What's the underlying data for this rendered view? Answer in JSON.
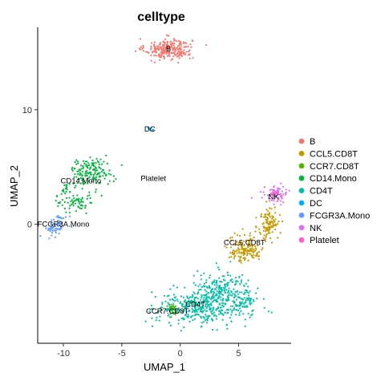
{
  "chart_data": {
    "type": "scatter",
    "title": "celltype",
    "xlabel": "UMAP_1",
    "ylabel": "UMAP_2",
    "xlim": [
      -12.2,
      9.5
    ],
    "ylim": [
      -10.4,
      17.2
    ],
    "xticks": [
      -10,
      -5,
      0,
      5
    ],
    "yticks": [
      0,
      10
    ],
    "grid": false,
    "legend_position": "right",
    "series": [
      {
        "name": "B",
        "color": "#F8766D",
        "clusters": [
          {
            "cx": -1.0,
            "cy": 15.3,
            "sx": 1.0,
            "sy": 0.45,
            "n": 260
          }
        ]
      },
      {
        "name": "CCL5.CD8T",
        "color": "#C49A00",
        "clusters": [
          {
            "cx": 7.6,
            "cy": 0.0,
            "sx": 0.45,
            "sy": 0.75,
            "n": 110
          },
          {
            "cx": 6.0,
            "cy": -2.1,
            "sx": 0.6,
            "sy": 0.6,
            "n": 90
          },
          {
            "cx": 5.0,
            "cy": -2.3,
            "sx": 0.5,
            "sy": 0.5,
            "n": 60
          }
        ]
      },
      {
        "name": "CCR7.CD8T",
        "color": "#53B400",
        "clusters": [
          {
            "cx": -0.7,
            "cy": -7.5,
            "sx": 0.3,
            "sy": 0.3,
            "n": 35
          }
        ]
      },
      {
        "name": "CD14.Mono",
        "color": "#00B63D",
        "clusters": [
          {
            "cx": -7.6,
            "cy": 4.6,
            "sx": 0.9,
            "sy": 0.55,
            "n": 150
          },
          {
            "cx": -9.0,
            "cy": 2.3,
            "sx": 0.8,
            "sy": 0.7,
            "n": 90
          }
        ]
      },
      {
        "name": "CD4T",
        "color": "#00BFA5",
        "clusters": [
          {
            "cx": 2.0,
            "cy": -7.2,
            "sx": 2.0,
            "sy": 0.75,
            "n": 420
          },
          {
            "cx": 3.5,
            "cy": -5.6,
            "sx": 1.2,
            "sy": 0.7,
            "n": 160
          },
          {
            "cx": 5.5,
            "cy": -6.6,
            "sx": 0.6,
            "sy": 0.4,
            "n": 50
          }
        ]
      },
      {
        "name": "DC",
        "color": "#00B1F6",
        "clusters": [
          {
            "cx": -2.6,
            "cy": 8.3,
            "sx": 0.12,
            "sy": 0.12,
            "n": 8
          }
        ]
      },
      {
        "name": "FCGR3A.Mono",
        "color": "#619CFF",
        "clusters": [
          {
            "cx": -10.4,
            "cy": 0.1,
            "sx": 0.4,
            "sy": 0.4,
            "n": 45
          },
          {
            "cx": -10.9,
            "cy": -0.5,
            "sx": 0.3,
            "sy": 0.3,
            "n": 20
          }
        ]
      },
      {
        "name": "NK",
        "color": "#DC71FA",
        "clusters": [
          {
            "cx": 8.2,
            "cy": 2.6,
            "sx": 0.5,
            "sy": 0.35,
            "n": 70
          }
        ]
      },
      {
        "name": "Platelet",
        "color": "#FF61C3",
        "clusters": [
          {
            "cx": 8.1,
            "cy": 2.5,
            "sx": 0.3,
            "sy": 0.25,
            "n": 14
          }
        ]
      }
    ],
    "cluster_labels": [
      {
        "text": "B",
        "x": -1.0,
        "y": 15.3
      },
      {
        "text": "DC",
        "x": -2.6,
        "y": 8.3
      },
      {
        "text": "CD14.Mono",
        "x": -8.5,
        "y": 3.8
      },
      {
        "text": "Platelet",
        "x": -2.3,
        "y": 4.0
      },
      {
        "text": "NK",
        "x": 8.0,
        "y": 2.4
      },
      {
        "text": "FCGR3A.Mono",
        "x": -10.0,
        "y": 0.0
      },
      {
        "text": "CCL5.CD8T",
        "x": 5.5,
        "y": -1.6
      },
      {
        "text": "CCR7.CD8T",
        "x": -1.1,
        "y": -7.6
      },
      {
        "text": "CD4T",
        "x": 1.3,
        "y": -7.0
      }
    ]
  }
}
